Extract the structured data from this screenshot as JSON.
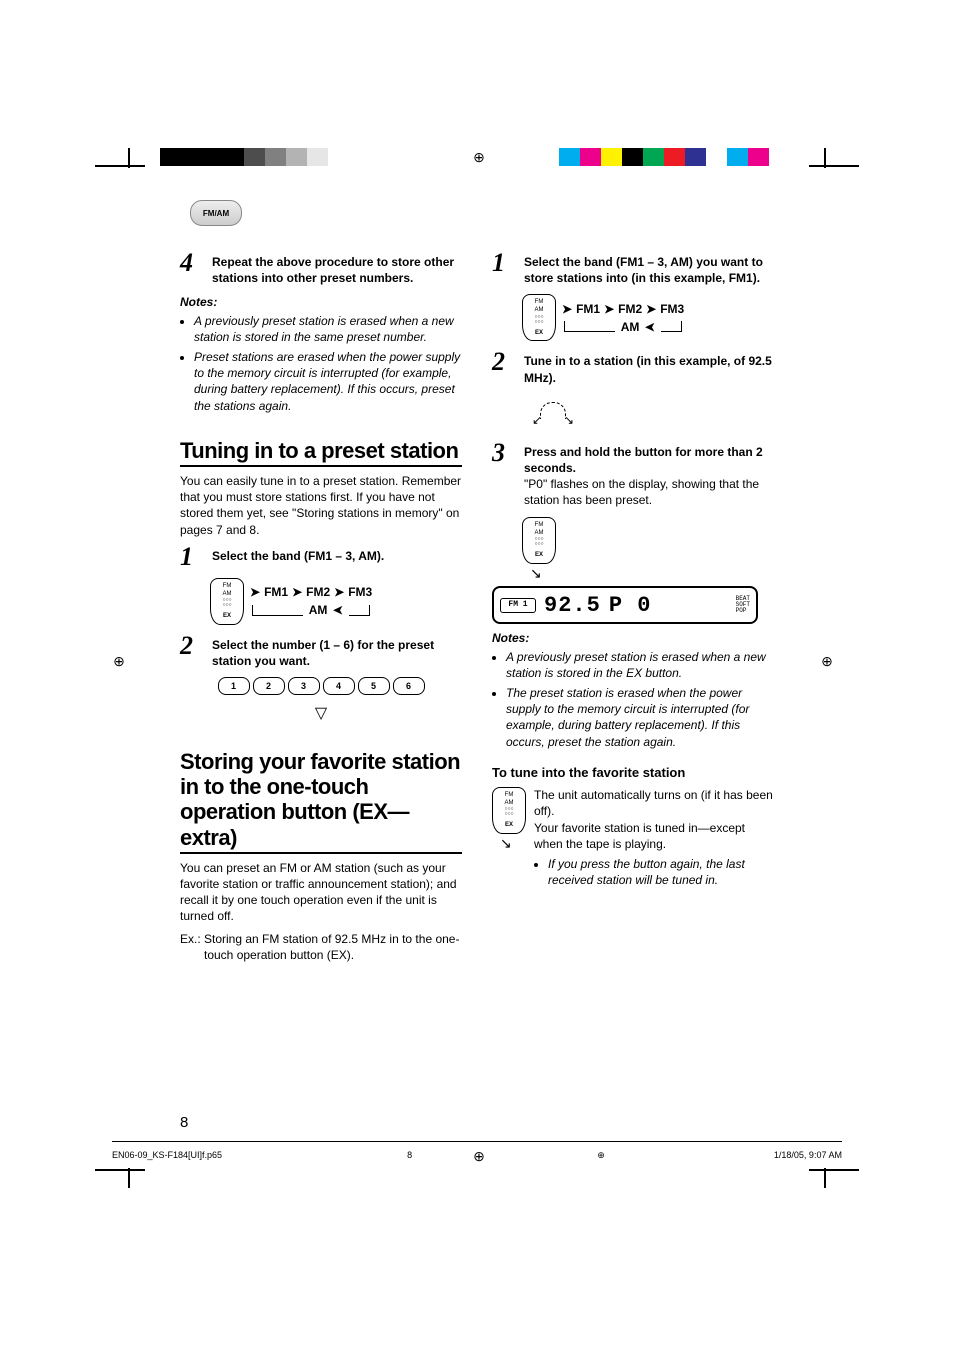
{
  "header_badge": "FM/AM",
  "left_col": {
    "step4": {
      "num": "4",
      "text": "Repeat the above procedure to store other stations into other preset numbers."
    },
    "notes_head": "Notes:",
    "notes": [
      "A previously preset station is erased when a new station is stored in the same preset number.",
      "Preset stations are erased when the power supply to the memory circuit is interrupted (for example, during battery replacement). If this occurs, preset the stations again."
    ],
    "section_tuning": "Tuning in to a preset station",
    "tuning_intro": "You can easily tune in to a preset station. Remember that you must store stations first. If you have not stored them yet, see \"Storing stations in memory\" on pages 7 and 8.",
    "step1": {
      "num": "1",
      "text": "Select the band (FM1 – 3, AM)."
    },
    "band_labels": {
      "fm1": "FM1",
      "fm2": "FM2",
      "fm3": "FM3",
      "am": "AM"
    },
    "step2": {
      "num": "2",
      "text": "Select the number (1 – 6) for the preset station you want."
    },
    "presets": [
      "1",
      "2",
      "3",
      "4",
      "5",
      "6"
    ],
    "section_storing": "Storing your favorite station in to the one-touch operation button (EX—extra)",
    "storing_intro": "You can preset an FM or AM station (such as your favorite station or traffic announcement station); and recall it by one touch operation even if the unit is turned off.",
    "storing_ex": "Ex.: Storing an FM station of 92.5 MHz in to the one-touch operation button (EX)."
  },
  "right_col": {
    "step1": {
      "num": "1",
      "text": "Select the band (FM1 – 3, AM) you want to store stations into (in this example, FM1)."
    },
    "band_labels": {
      "fm1": "FM1",
      "fm2": "FM2",
      "fm3": "FM3",
      "am": "AM"
    },
    "step2": {
      "num": "2",
      "text": "Tune in to a station (in this example, of 92.5 MHz)."
    },
    "step3": {
      "num": "3",
      "text_bold": "Press and hold the button for more than 2 seconds.",
      "text_plain": "\"P0\" flashes on the display, showing that the station has been preset."
    },
    "lcd": {
      "band": "FM 1",
      "freq": "92.5",
      "p0": "P 0",
      "side1": "BEAT",
      "side2": "SOFT",
      "side3": "POP"
    },
    "notes_head": "Notes:",
    "notes": [
      "A previously preset station is erased when a new station is stored in the EX button.",
      "The preset station is erased when the power supply to the memory circuit is interrupted (for example, during battery replacement). If this occurs, preset the station again."
    ],
    "sub_head": "To tune into the favorite station",
    "tune_text1": "The unit automatically turns on (if it has been off).",
    "tune_text2": "Your favorite station is tuned in—except when the tape is playing.",
    "tune_bullet": "If you press the button again, the last received station will be tuned in."
  },
  "fm_am_button": {
    "line1": "FM",
    "line2": "AM",
    "ex": "EX"
  },
  "page_number": "8",
  "footer": {
    "file": "EN06-09_KS-F184[UI]f.p65",
    "page": "8",
    "date": "1/18/05, 9:07 AM"
  },
  "color_bar_left": [
    "#000000",
    "#000000",
    "#000000",
    "#000000",
    "#4d4d4d",
    "#808080",
    "#b3b3b3",
    "#e6e6e6",
    "#ffffff"
  ],
  "color_bar_right": [
    "#00aeef",
    "#ec008c",
    "#fff200",
    "#000000",
    "#00a651",
    "#ed1c24",
    "#2e3192",
    "#ffffff",
    "#00aeef",
    "#ec008c"
  ],
  "font_sizes": {
    "body": 12,
    "step_num": 26,
    "section": 22,
    "sub": 13,
    "notes": 12,
    "footer": 9,
    "page_num": 15
  },
  "colors": {
    "text": "#000000",
    "bg": "#ffffff",
    "rule": "#000000"
  }
}
